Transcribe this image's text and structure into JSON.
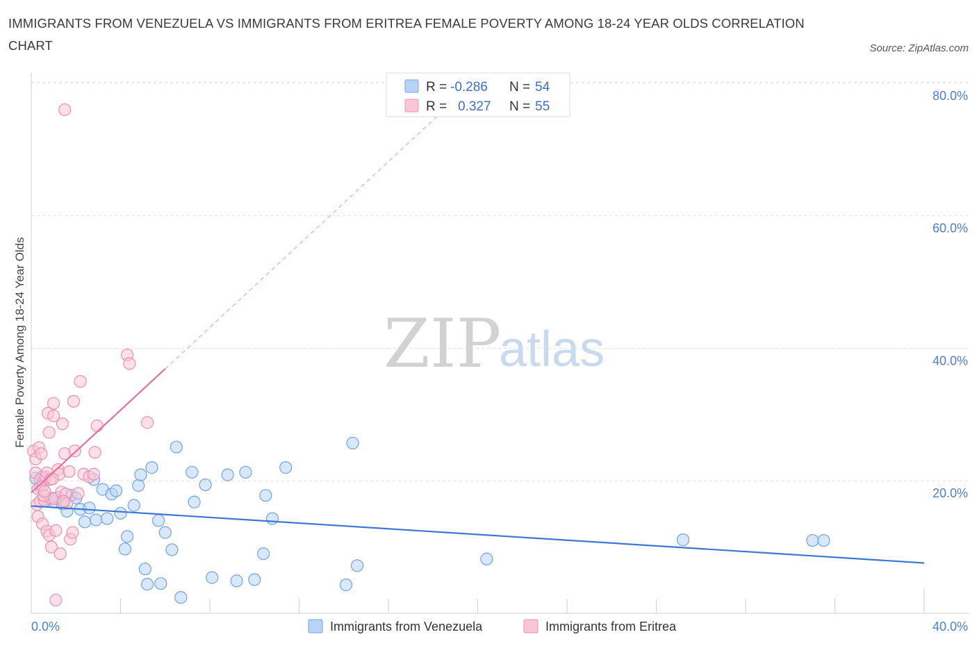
{
  "title": "IMMIGRANTS FROM VENEZUELA VS IMMIGRANTS FROM ERITREA FEMALE POVERTY AMONG 18-24 YEAR OLDS CORRELATION CHART",
  "source": "Source: ZipAtlas.com",
  "watermark": {
    "zip": "ZIP",
    "atlas": "atlas"
  },
  "legend": {
    "rows": [
      {
        "r_label": "R =",
        "r_value": "-0.286",
        "n_label": "N =",
        "n_value": "54",
        "color": "#6ea3e8",
        "fill": "#b9d3f6"
      },
      {
        "r_label": "R =",
        "r_value": "0.327",
        "n_label": "N =",
        "n_value": "55",
        "color": "#ee8fb0",
        "fill": "#f8c6d6"
      }
    ]
  },
  "bottom_legend": [
    "Immigrants from Venezuela",
    "Immigrants from Eritrea"
  ],
  "chart_data": {
    "type": "scatter",
    "title": "IMMIGRANTS FROM VENEZUELA VS IMMIGRANTS FROM ERITREA FEMALE POVERTY AMONG 18-24 YEAR OLDS CORRELATION CHART",
    "xlabel": "",
    "ylabel": "Female Poverty Among 18-24 Year Olds",
    "xlim": [
      0,
      40
    ],
    "ylim": [
      0,
      80
    ],
    "x_tick_labels": [
      "0.0%",
      "40.0%"
    ],
    "y_ticks": [
      20,
      40,
      60,
      80
    ],
    "y_tick_labels": [
      "20.0%",
      "40.0%",
      "60.0%",
      "80.0%"
    ],
    "grid": true,
    "legend_position": "top-center",
    "series": [
      {
        "name": "Immigrants from Venezuela",
        "color": "#6ea3e8",
        "fill": "#b9d3f6",
        "trend": {
          "x": [
            0,
            40
          ],
          "y": [
            16.2,
            7.6
          ]
        },
        "points": [
          [
            0.2,
            20.4
          ],
          [
            0.4,
            19.1
          ],
          [
            0.5,
            20.6
          ],
          [
            0.6,
            20.3
          ],
          [
            0.8,
            17.2
          ],
          [
            1.0,
            16.8
          ],
          [
            1.2,
            17.5
          ],
          [
            1.4,
            16.5
          ],
          [
            1.6,
            15.4
          ],
          [
            1.8,
            17.8
          ],
          [
            2.0,
            17.4
          ],
          [
            2.2,
            15.7
          ],
          [
            2.4,
            13.8
          ],
          [
            2.6,
            15.9
          ],
          [
            2.8,
            20.2
          ],
          [
            2.9,
            14.1
          ],
          [
            3.2,
            18.7
          ],
          [
            3.4,
            14.3
          ],
          [
            3.6,
            18.0
          ],
          [
            3.8,
            18.5
          ],
          [
            4.0,
            15.1
          ],
          [
            4.3,
            11.6
          ],
          [
            4.2,
            9.7
          ],
          [
            4.6,
            16.3
          ],
          [
            4.8,
            19.3
          ],
          [
            4.9,
            20.9
          ],
          [
            5.1,
            6.7
          ],
          [
            5.2,
            4.4
          ],
          [
            5.4,
            22.0
          ],
          [
            5.7,
            14.0
          ],
          [
            5.8,
            4.5
          ],
          [
            6.0,
            12.2
          ],
          [
            6.3,
            9.6
          ],
          [
            6.5,
            25.1
          ],
          [
            6.7,
            2.4
          ],
          [
            7.2,
            21.3
          ],
          [
            7.3,
            16.8
          ],
          [
            7.8,
            19.4
          ],
          [
            8.1,
            5.4
          ],
          [
            8.8,
            20.9
          ],
          [
            9.2,
            4.9
          ],
          [
            9.6,
            21.3
          ],
          [
            10.0,
            5.1
          ],
          [
            10.4,
            9.0
          ],
          [
            10.5,
            17.8
          ],
          [
            10.8,
            14.3
          ],
          [
            11.4,
            22.0
          ],
          [
            14.1,
            4.3
          ],
          [
            14.4,
            25.7
          ],
          [
            14.6,
            7.2
          ],
          [
            20.4,
            8.2
          ],
          [
            29.2,
            11.1
          ],
          [
            35.0,
            11.0
          ],
          [
            35.5,
            11.0
          ]
        ]
      },
      {
        "name": "Immigrants from Eritrea",
        "color": "#ee8fb0",
        "fill": "#f8c6d6",
        "trend": {
          "x": [
            0,
            6.0
          ],
          "y": [
            18.2,
            36.9
          ],
          "dashed_to": {
            "x": 18.5,
            "y": 76.0
          }
        },
        "points": [
          [
            0.1,
            24.5
          ],
          [
            0.2,
            23.3
          ],
          [
            0.2,
            21.2
          ],
          [
            0.25,
            16.4
          ],
          [
            0.3,
            18.8
          ],
          [
            0.3,
            14.6
          ],
          [
            0.35,
            25.0
          ],
          [
            0.4,
            20.2
          ],
          [
            0.4,
            16.9
          ],
          [
            0.45,
            24.1
          ],
          [
            0.5,
            19.2
          ],
          [
            0.5,
            13.5
          ],
          [
            0.6,
            17.0
          ],
          [
            0.65,
            20.6
          ],
          [
            0.7,
            21.2
          ],
          [
            0.7,
            12.4
          ],
          [
            0.75,
            30.2
          ],
          [
            0.8,
            27.3
          ],
          [
            0.8,
            11.8
          ],
          [
            0.85,
            20.2
          ],
          [
            0.9,
            17.4
          ],
          [
            0.9,
            10.0
          ],
          [
            1.0,
            31.7
          ],
          [
            1.0,
            29.8
          ],
          [
            1.05,
            17.3
          ],
          [
            1.1,
            12.5
          ],
          [
            1.2,
            21.7
          ],
          [
            1.25,
            21.0
          ],
          [
            1.3,
            9.0
          ],
          [
            1.35,
            18.3
          ],
          [
            1.4,
            28.6
          ],
          [
            1.5,
            24.1
          ],
          [
            1.55,
            18.0
          ],
          [
            1.6,
            16.6
          ],
          [
            1.7,
            21.4
          ],
          [
            1.75,
            11.2
          ],
          [
            1.85,
            12.2
          ],
          [
            1.9,
            32.0
          ],
          [
            1.95,
            24.5
          ],
          [
            2.1,
            18.1
          ],
          [
            2.2,
            35.0
          ],
          [
            2.35,
            21.0
          ],
          [
            2.6,
            20.6
          ],
          [
            2.8,
            21.0
          ],
          [
            2.85,
            24.3
          ],
          [
            2.95,
            28.3
          ],
          [
            4.3,
            39.0
          ],
          [
            4.4,
            37.7
          ],
          [
            5.2,
            28.8
          ],
          [
            1.1,
            2.0
          ],
          [
            1.5,
            76.0
          ],
          [
            0.55,
            17.8
          ],
          [
            0.6,
            18.4
          ],
          [
            0.95,
            20.3
          ],
          [
            1.45,
            16.9
          ]
        ]
      }
    ]
  }
}
